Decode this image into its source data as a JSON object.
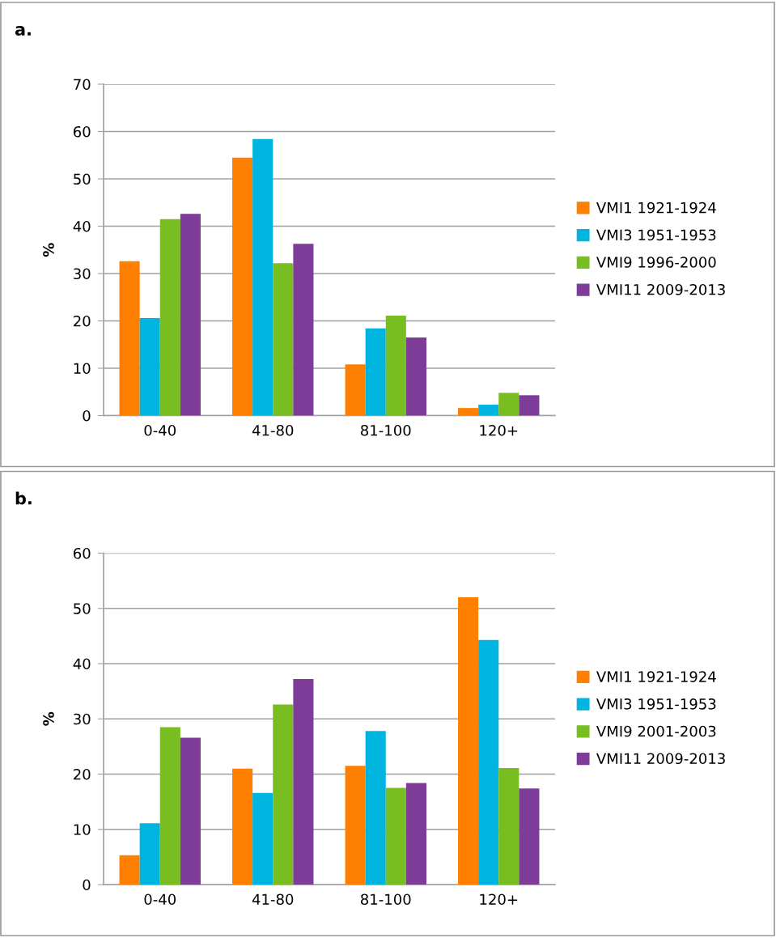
{
  "chart_data": [
    {
      "type": "bar",
      "title": "a.",
      "ylabel": "%",
      "categories": [
        "0-40",
        "41-80",
        "81-100",
        "120+"
      ],
      "ylim": [
        0,
        70
      ],
      "yticks": [
        0,
        10,
        20,
        30,
        40,
        50,
        60,
        70
      ],
      "grid": "y",
      "legend": "right",
      "series": [
        {
          "name": "VMI1 1921-1924",
          "color": "#ff8000",
          "values": [
            32.6,
            54.5,
            10.8,
            1.6
          ]
        },
        {
          "name": "VMI3 1951-1953",
          "color": "#00b4e0",
          "values": [
            20.6,
            58.4,
            18.4,
            2.3
          ]
        },
        {
          "name": "VMI9 1996-2000",
          "color": "#78be20",
          "values": [
            41.5,
            32.2,
            21.1,
            4.8
          ]
        },
        {
          "name": "VMI11 2009-2013",
          "color": "#7d3c98",
          "values": [
            42.6,
            36.3,
            16.5,
            4.3
          ]
        }
      ]
    },
    {
      "type": "bar",
      "title": "b.",
      "ylabel": "%",
      "categories": [
        "0-40",
        "41-80",
        "81-100",
        "120+"
      ],
      "ylim": [
        0,
        60
      ],
      "yticks": [
        0,
        10,
        20,
        30,
        40,
        50,
        60
      ],
      "grid": "y",
      "legend": "right",
      "series": [
        {
          "name": "VMI1 1921-1924",
          "color": "#ff8000",
          "values": [
            5.3,
            21.0,
            21.5,
            52.0
          ]
        },
        {
          "name": "VMI3 1951-1953",
          "color": "#00b4e0",
          "values": [
            11.1,
            16.6,
            27.8,
            44.3
          ]
        },
        {
          "name": "VMI9 2001-2003",
          "color": "#78be20",
          "values": [
            28.5,
            32.6,
            17.5,
            21.1
          ]
        },
        {
          "name": "VMI11 2009-2013",
          "color": "#7d3c98",
          "values": [
            26.6,
            37.2,
            18.4,
            17.4
          ]
        }
      ]
    }
  ]
}
